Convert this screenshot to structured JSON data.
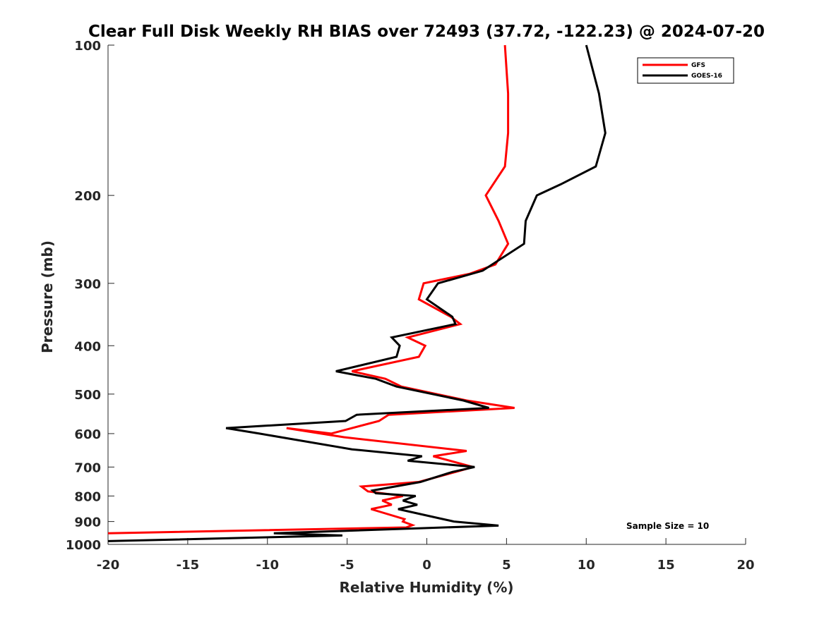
{
  "chart_data": {
    "type": "line",
    "title": "Clear Full Disk Weekly RH BIAS over 72493 (37.72, -122.23) @ 2024-07-20",
    "xlabel": "Relative Humidity (%)",
    "ylabel": "Pressure (mb)",
    "xlim": [
      -20,
      20
    ],
    "ylim": [
      100,
      1000
    ],
    "y_scale": "log",
    "y_reversed": true,
    "x_ticks": [
      -20,
      -15,
      -10,
      -5,
      0,
      5,
      10,
      15,
      20
    ],
    "y_ticks": [
      100,
      200,
      300,
      400,
      500,
      600,
      700,
      800,
      900,
      1000
    ],
    "grid": false,
    "legend_position": "top-right",
    "annotation": "Sample Size = 10",
    "series": [
      {
        "name": "GFS",
        "color": "#ff0000",
        "points": [
          [
            4.9,
            100
          ],
          [
            5.1,
            125
          ],
          [
            5.1,
            150
          ],
          [
            4.9,
            175
          ],
          [
            3.7,
            200
          ],
          [
            4.5,
            225
          ],
          [
            5.1,
            250
          ],
          [
            4.3,
            275
          ],
          [
            2.7,
            287
          ],
          [
            -0.2,
            300
          ],
          [
            -0.5,
            323
          ],
          [
            1.5,
            350
          ],
          [
            2.1,
            362
          ],
          [
            -1.2,
            385
          ],
          [
            -0.1,
            400
          ],
          [
            -0.5,
            421
          ],
          [
            -4.7,
            450
          ],
          [
            -2.6,
            466
          ],
          [
            -1.6,
            483
          ],
          [
            2.5,
            515
          ],
          [
            5.5,
            533
          ],
          [
            -2.4,
            550
          ],
          [
            -3,
            566
          ],
          [
            -6,
            600
          ],
          [
            -8.8,
            585
          ],
          [
            -5.2,
            610
          ],
          [
            2.5,
            650
          ],
          [
            0.4,
            666
          ],
          [
            2.9,
            700
          ],
          [
            1.8,
            716
          ],
          [
            -0.5,
            750
          ],
          [
            -4.1,
            766
          ],
          [
            -3.7,
            783
          ],
          [
            -1.5,
            800
          ],
          [
            -2.8,
            817
          ],
          [
            -2.2,
            833
          ],
          [
            -3.5,
            850
          ],
          [
            -1.4,
            890
          ],
          [
            -1.5,
            900
          ],
          [
            -0.9,
            915
          ],
          [
            -1.3,
            925
          ],
          [
            -20,
            950
          ]
        ]
      },
      {
        "name": "GOES-16",
        "color": "#000000",
        "points": [
          [
            10,
            100
          ],
          [
            10.8,
            125
          ],
          [
            11.2,
            150
          ],
          [
            10.6,
            175
          ],
          [
            8.4,
            190
          ],
          [
            6.9,
            200
          ],
          [
            6.2,
            225
          ],
          [
            6.1,
            250
          ],
          [
            3.5,
            283
          ],
          [
            0.7,
            300
          ],
          [
            0,
            323
          ],
          [
            1.6,
            350
          ],
          [
            1.8,
            362
          ],
          [
            -2.2,
            385
          ],
          [
            -1.7,
            400
          ],
          [
            -1.9,
            421
          ],
          [
            -5.7,
            450
          ],
          [
            -3.2,
            466
          ],
          [
            -1.9,
            483
          ],
          [
            2.3,
            515
          ],
          [
            3.9,
            533
          ],
          [
            -4.4,
            550
          ],
          [
            -5.1,
            566
          ],
          [
            -12.6,
            585
          ],
          [
            -10.5,
            600
          ],
          [
            -4.7,
            645
          ],
          [
            -0.3,
            666
          ],
          [
            -1.2,
            680
          ],
          [
            3,
            700
          ],
          [
            1.6,
            716
          ],
          [
            -0.4,
            750
          ],
          [
            -3.4,
            780
          ],
          [
            -3.2,
            790
          ],
          [
            -0.7,
            800
          ],
          [
            -1.5,
            817
          ],
          [
            -0.6,
            833
          ],
          [
            -1.8,
            850
          ],
          [
            0.8,
            887
          ],
          [
            1.7,
            900
          ],
          [
            4.5,
            917
          ],
          [
            -9.6,
            950
          ],
          [
            -5.3,
            960
          ],
          [
            -20,
            985
          ]
        ]
      }
    ]
  }
}
